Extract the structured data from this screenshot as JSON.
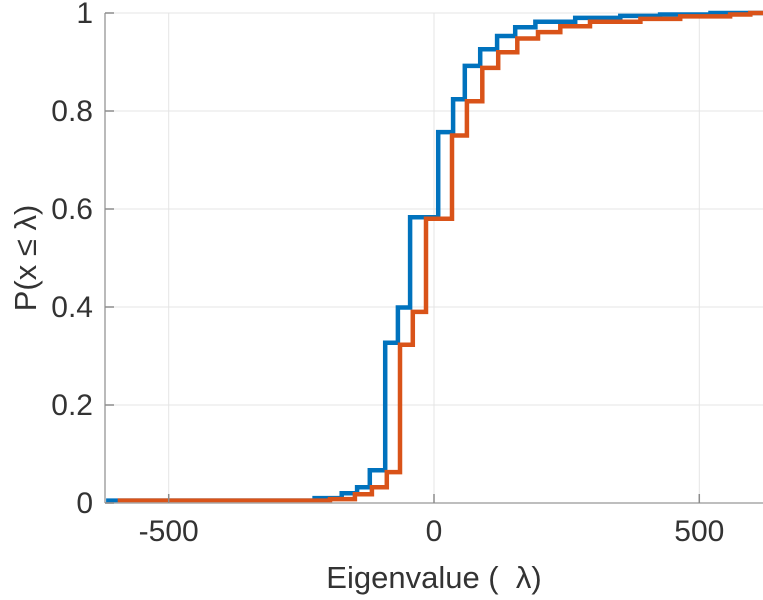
{
  "chart_data": {
    "type": "line",
    "subtype": "step-ecdf",
    "title": "",
    "xlabel": "Eigenvalue (  λ)",
    "ylabel": "P(x ≤ λ)",
    "xlim": [
      -620,
      620
    ],
    "ylim": [
      0,
      1
    ],
    "grid": true,
    "legend": "none",
    "xticks": [
      {
        "value": -500,
        "label": "-500"
      },
      {
        "value": 0,
        "label": "0"
      },
      {
        "value": 500,
        "label": "500"
      }
    ],
    "yticks": [
      {
        "value": 0,
        "label": "0"
      },
      {
        "value": 0.2,
        "label": "0.2"
      },
      {
        "value": 0.4,
        "label": "0.4"
      },
      {
        "value": 0.6,
        "label": "0.6"
      },
      {
        "value": 0.8,
        "label": "0.8"
      },
      {
        "value": 1,
        "label": "1"
      }
    ],
    "series": [
      {
        "name": "ecdf-blue",
        "color": "#0072BD",
        "points": [
          [
            -618,
            0.005
          ],
          [
            -225,
            0.01
          ],
          [
            -174,
            0.02
          ],
          [
            -145,
            0.032
          ],
          [
            -121,
            0.067
          ],
          [
            -92,
            0.327
          ],
          [
            -68,
            0.399
          ],
          [
            -45,
            0.583
          ],
          [
            8,
            0.757
          ],
          [
            36,
            0.824
          ],
          [
            58,
            0.892
          ],
          [
            87,
            0.926
          ],
          [
            119,
            0.953
          ],
          [
            153,
            0.971
          ],
          [
            191,
            0.982
          ],
          [
            266,
            0.99
          ],
          [
            351,
            0.994
          ],
          [
            426,
            0.997
          ],
          [
            521,
            1.0
          ]
        ]
      },
      {
        "name": "ecdf-orange",
        "color": "#D95319",
        "points": [
          [
            -596,
            0.005
          ],
          [
            -196,
            0.008
          ],
          [
            -149,
            0.018
          ],
          [
            -117,
            0.032
          ],
          [
            -89,
            0.063
          ],
          [
            -64,
            0.323
          ],
          [
            -40,
            0.39
          ],
          [
            -15,
            0.58
          ],
          [
            34,
            0.75
          ],
          [
            62,
            0.82
          ],
          [
            91,
            0.888
          ],
          [
            121,
            0.92
          ],
          [
            157,
            0.948
          ],
          [
            196,
            0.961
          ],
          [
            238,
            0.973
          ],
          [
            294,
            0.982
          ],
          [
            389,
            0.988
          ],
          [
            464,
            0.993
          ],
          [
            558,
            0.997
          ],
          [
            596,
            1.0
          ]
        ]
      }
    ],
    "style": {
      "axis_color": "#a8a8a8",
      "tick_color": "#8c8c8c",
      "grid_color": "#e4e4e4",
      "tick_label_color": "#333333",
      "line_width": 4.5
    }
  }
}
